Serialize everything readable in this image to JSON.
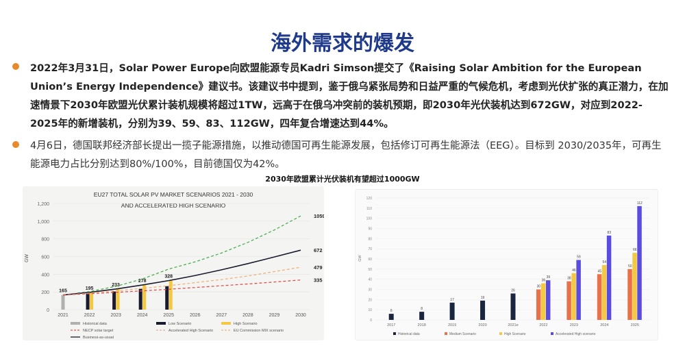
{
  "page": {
    "title": "海外需求的爆发",
    "bullet1": "2022年3月31日，Solar Power Europe向欧盟能源专员Kadri Simson提交了《Raising Solar Ambition for the European Union’s Energy Independence》建议书。该建议书中提到，鉴于俄乌紧张局势和日益严重的气候危机，考虑到光伏扩张的真正潜力，在加速情景下2030年欧盟光伏累计装机规模将超过1TW，远高于在俄乌冲突前的装机预期，即2030年光伏装机达到672GW，对应到2022-2025年的新增装机，分别为39、59、83、112GW，四年复合增速达到44%。",
    "bullet2": "4月6日，德国联邦经济部长提出一揽子能源措施，以推动德国可再生能源发展，包括修订可再生能源法（EEG）。目标到 2030/2035年，可再生能源电力占比分别达到80%/100%，目前德国仅为42%。",
    "chart_caption": "2030年欧盟累计光伏装机有望超过1000GW"
  },
  "colors": {
    "title": "#1f3a8a",
    "bullet": "#e8892b",
    "historical": "#b0b0b0",
    "low": "#1a1a2e",
    "high": "#f5c842",
    "neop": "#e05050",
    "accel": "#e8a8a0",
    "eu_mix": "#f0b27a",
    "bau": "#1a1a2e",
    "green": "#4caf50",
    "historical_right": "#1a2540",
    "medium": "#e8714a",
    "high_right": "#f5c842",
    "accel_right": "#5b4ce0"
  },
  "chart_data": [
    {
      "type": "line",
      "title": "EU27 TOTAL SOLAR PV MARKET SCENARIOS 2021 - 2030",
      "subtitle": "AND ACCELERATED HIGH SCENARIO",
      "ylabel": "GW",
      "ylim": [
        0,
        1200
      ],
      "yticks": [
        "0",
        "200",
        "400",
        "600",
        "800",
        "1,000",
        "1,200"
      ],
      "categories": [
        "2021",
        "2022",
        "2023",
        "2024",
        "2025",
        "2026",
        "2027",
        "2028",
        "2029",
        "2030"
      ],
      "bars": {
        "historical": [
          165
        ],
        "low": [
          null,
          180,
          205,
          235,
          265
        ],
        "high": [
          null,
          195,
          233,
          278,
          328
        ],
        "bar_labels": [
          "165",
          "195",
          "233",
          "278",
          "328"
        ]
      },
      "series": [
        {
          "name": "Accelerated High Scenario",
          "values": [
            165,
            204,
            263,
            346,
            458,
            540,
            640,
            760,
            900,
            1059
          ],
          "style": "dashed-green"
        },
        {
          "name": "Business-as-usual",
          "values": [
            165,
            195,
            233,
            278,
            328,
            385,
            450,
            520,
            595,
            672
          ],
          "style": "solid-dark"
        },
        {
          "name": "NECP solar target",
          "values": [
            165,
            187,
            212,
            240,
            270,
            305,
            340,
            380,
            430,
            479
          ],
          "style": "dashed-orange"
        },
        {
          "name": "EU Commission MIX scenario",
          "values": [
            165,
            180,
            195,
            212,
            230,
            250,
            270,
            290,
            312,
            335
          ],
          "style": "dashed-red"
        }
      ],
      "end_labels": [
        "1059",
        "672",
        "479",
        "335"
      ],
      "legend": [
        "Historical data",
        "Low Scenario",
        "High Scenario",
        "NECP solar target",
        "Accelerated High Scenario",
        "EU Commission MIX scenario",
        "Business-as-usual"
      ]
    },
    {
      "type": "bar",
      "ylabel": "GW",
      "ylim": [
        0,
        120
      ],
      "yticks": [
        "0",
        "10",
        "20",
        "30",
        "40",
        "50",
        "60",
        "70",
        "80",
        "90",
        "100",
        "110",
        "120"
      ],
      "categories": [
        "2017",
        "2018",
        "2019",
        "2020",
        "2021e",
        "2022",
        "2023",
        "2024",
        "2025"
      ],
      "historical": [
        6,
        8,
        17,
        19,
        26,
        null,
        null,
        null,
        null
      ],
      "series": [
        {
          "name": "Medium Scenario",
          "values": [
            null,
            null,
            null,
            null,
            null,
            30,
            38,
            45,
            50
          ]
        },
        {
          "name": "High Scenario",
          "values": [
            null,
            null,
            null,
            null,
            null,
            36,
            46,
            54,
            66
          ]
        },
        {
          "name": "Accelerated High scenario",
          "values": [
            null,
            null,
            null,
            null,
            null,
            39,
            59,
            83,
            112
          ]
        }
      ],
      "legend": [
        "Historical data",
        "Medium Scenario",
        "High Scenario",
        "Accelerated High scenario"
      ]
    }
  ]
}
